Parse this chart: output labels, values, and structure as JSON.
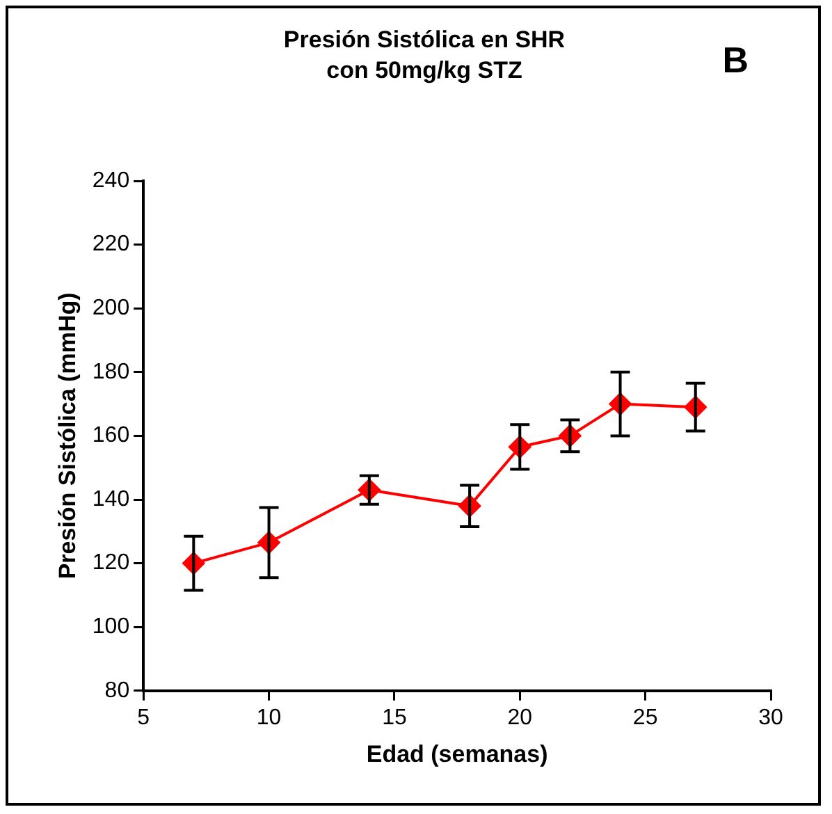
{
  "chart_data": {
    "type": "line",
    "title": "Presión Sistólica en SHR con 50mg/kg STZ",
    "xlabel": "Edad (semanas)",
    "ylabel": "Presión Sistólica (mmHg)",
    "annotations": [
      "B"
    ],
    "x": [
      7,
      10,
      14,
      18,
      20,
      22,
      24,
      27
    ],
    "series": [
      {
        "color": "#ff0000",
        "values": [
          120,
          126.5,
          143,
          138,
          156.5,
          160,
          170,
          169
        ],
        "errors": [
          8.5,
          11,
          4.5,
          6.5,
          7,
          5,
          10,
          7.5
        ]
      }
    ],
    "xlim": [
      5,
      30
    ],
    "xticks": [
      5,
      10,
      15,
      20,
      25,
      30
    ],
    "ylim": [
      80,
      240
    ],
    "yticks": [
      80,
      100,
      120,
      140,
      160,
      180,
      200,
      220,
      240
    ],
    "grid": false,
    "legend": false,
    "marker": "diamond",
    "line_style": "solid"
  }
}
